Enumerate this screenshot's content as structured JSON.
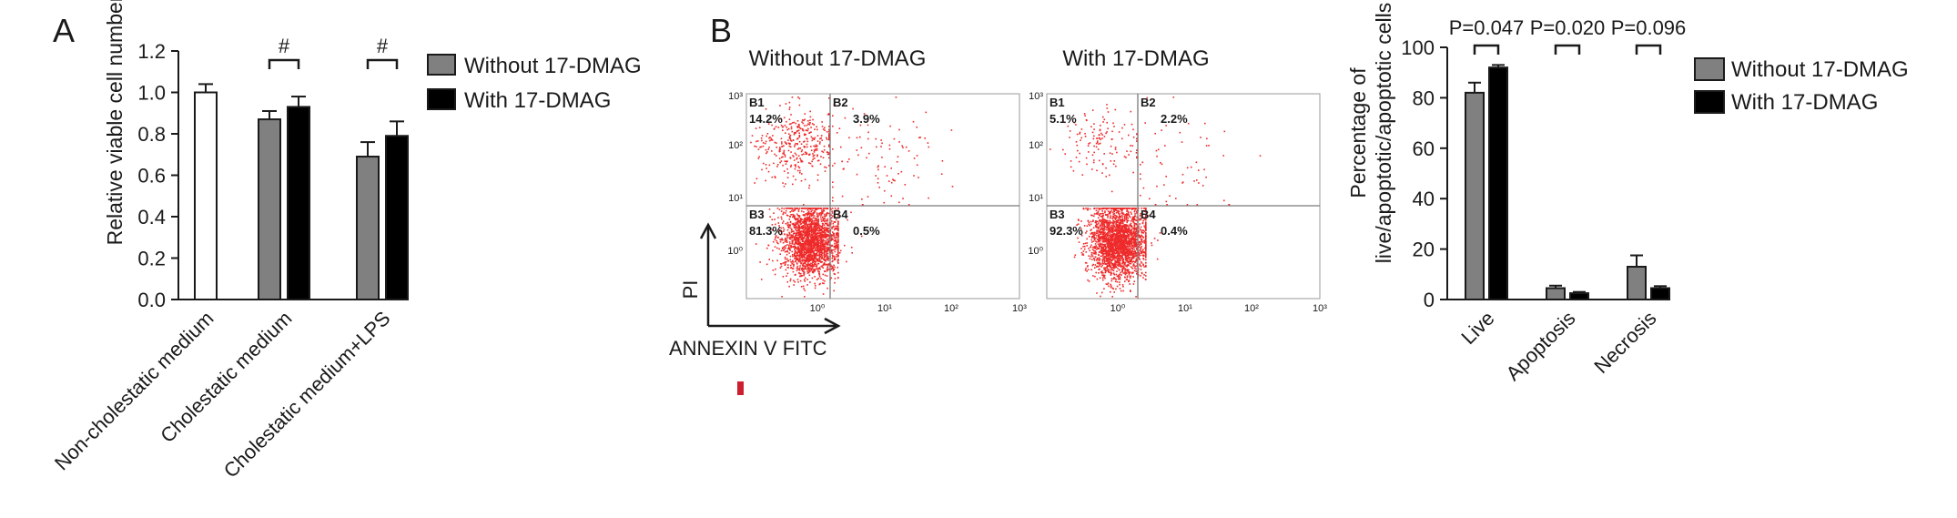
{
  "panels": {
    "a_label": "A",
    "b_label": "B"
  },
  "legend": {
    "without_label": "Without 17-DMAG",
    "with_label": "With 17-DMAG"
  },
  "colors": {
    "without": "#808080",
    "with": "#000000",
    "non_cholestatic": "#ffffff",
    "dots": "#ee2a2a",
    "quadrant_lines": "#7a7a7a"
  },
  "panelA": {
    "ylabel": "Relative viable cell number",
    "significance_marks": [
      "#",
      "#"
    ]
  },
  "panelB_flow": {
    "plots": [
      {
        "title": "Without 17-DMAG",
        "quadrants": {
          "B1": "14.2%",
          "B2": "3.9%",
          "B3": "81.3%",
          "B4": "0.5%"
        }
      },
      {
        "title": "With 17-DMAG",
        "quadrants": {
          "B1": "5.1%",
          "B2": "2.2%",
          "B3": "92.3%",
          "B4": "0.4%"
        }
      }
    ],
    "quadrant_names": [
      "B1",
      "B2",
      "B3",
      "B4"
    ],
    "x_ticks": [
      "10⁰",
      "10¹",
      "10²",
      "10³"
    ],
    "y_ticks": [
      "10³",
      "10²",
      "10¹",
      "10⁰"
    ],
    "xlabel": "ANNEXIN V FITC",
    "ylabel": "PI"
  },
  "panelB_bar": {
    "ylabel_line1": "Percentage of",
    "ylabel_line2": "live/apoptotic/apoptotic cells",
    "p_values": [
      "P=0.047",
      "P=0.020",
      "P=0.096"
    ]
  },
  "chart_data": [
    {
      "type": "bar",
      "title": "",
      "ylabel": "Relative viable cell number",
      "ylim": [
        0,
        1.2
      ],
      "yticks": [
        "0.0",
        "0.2",
        "0.4",
        "0.6",
        "0.8",
        "1.0",
        "1.2"
      ],
      "categories": [
        "Non-cholestatic medium",
        "Cholestatic medium",
        "Cholestatic medium+LPS"
      ],
      "series": [
        {
          "name": "Without 17-DMAG",
          "values": [
            1.0,
            0.87,
            0.69
          ],
          "errors": [
            0.04,
            0.04,
            0.07
          ]
        },
        {
          "name": "With 17-DMAG",
          "values": [
            null,
            0.93,
            0.79
          ],
          "errors": [
            null,
            0.05,
            0.07
          ]
        }
      ],
      "legend": "right"
    },
    {
      "type": "scatter",
      "title": "Without 17-DMAG",
      "xlabel": "ANNEXIN V FITC",
      "ylabel": "PI",
      "xscale": "log",
      "yscale": "log",
      "xlim": [
        "10⁻¹",
        "10³"
      ],
      "ylim": [
        "10⁻¹",
        "10³"
      ],
      "quadrants": {
        "B1": 14.2,
        "B2": 3.9,
        "B3": 81.3,
        "B4": 0.5
      }
    },
    {
      "type": "scatter",
      "title": "With 17-DMAG",
      "xlabel": "ANNEXIN V FITC",
      "ylabel": "PI",
      "xscale": "log",
      "yscale": "log",
      "xlim": [
        "10⁻¹",
        "10³"
      ],
      "ylim": [
        "10⁻¹",
        "10³"
      ],
      "quadrants": {
        "B1": 5.1,
        "B2": 2.2,
        "B3": 92.3,
        "B4": 0.4
      }
    },
    {
      "type": "bar",
      "title": "",
      "ylabel": "Percentage of live/apoptotic/apoptotic cells",
      "ylim": [
        0,
        100
      ],
      "yticks": [
        "0",
        "20",
        "40",
        "60",
        "80",
        "100"
      ],
      "categories": [
        "Live",
        "Apoptosis",
        "Necrosis"
      ],
      "series": [
        {
          "name": "Without 17-DMAG",
          "values": [
            82,
            4.5,
            13
          ],
          "errors": [
            4,
            1,
            4.5
          ]
        },
        {
          "name": "With 17-DMAG",
          "values": [
            92,
            2.5,
            4.5
          ],
          "errors": [
            1,
            0.5,
            0.8
          ]
        }
      ],
      "p_values": [
        "P=0.047",
        "P=0.020",
        "P=0.096"
      ],
      "legend": "right"
    }
  ]
}
